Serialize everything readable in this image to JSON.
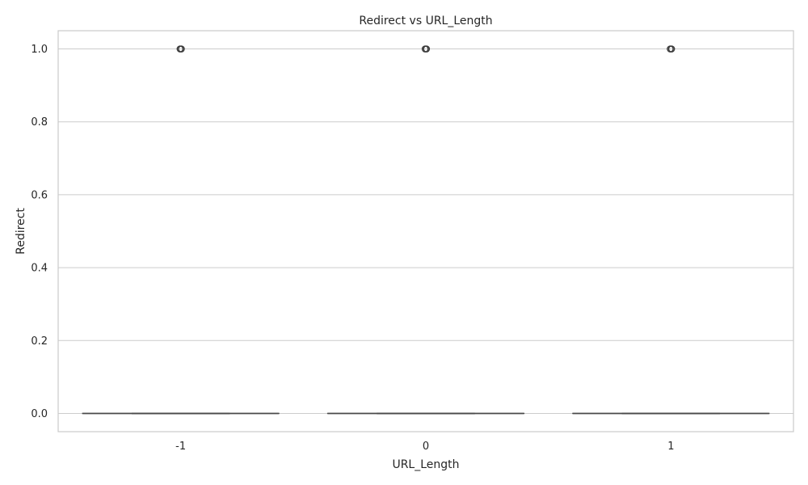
{
  "chart_data": {
    "type": "box",
    "title": "Redirect vs URL_Length",
    "xlabel": "URL_Length",
    "ylabel": "Redirect",
    "categories": [
      "-1",
      "0",
      "1"
    ],
    "ylim": [
      -0.05,
      1.05
    ],
    "yticks": [
      0.0,
      0.2,
      0.4,
      0.6,
      0.8,
      1.0
    ],
    "ytick_labels": [
      "0.0",
      "0.2",
      "0.4",
      "0.6",
      "0.8",
      "1.0"
    ],
    "grid": true,
    "boxes": [
      {
        "category": "-1",
        "min": 0.0,
        "q1": 0.0,
        "median": 0.0,
        "q3": 0.0,
        "max": 0.0,
        "outliers": [
          1.0
        ]
      },
      {
        "category": "0",
        "min": 0.0,
        "q1": 0.0,
        "median": 0.0,
        "q3": 0.0,
        "max": 0.0,
        "outliers": [
          1.0
        ]
      },
      {
        "category": "1",
        "min": 0.0,
        "q1": 0.0,
        "median": 0.0,
        "q3": 0.0,
        "max": 0.0,
        "outliers": [
          1.0
        ]
      }
    ],
    "colors": {
      "grid": "#cccccc",
      "box": "#4a4a4a",
      "outlier": "#3a3a3a",
      "text": "#262626"
    }
  }
}
